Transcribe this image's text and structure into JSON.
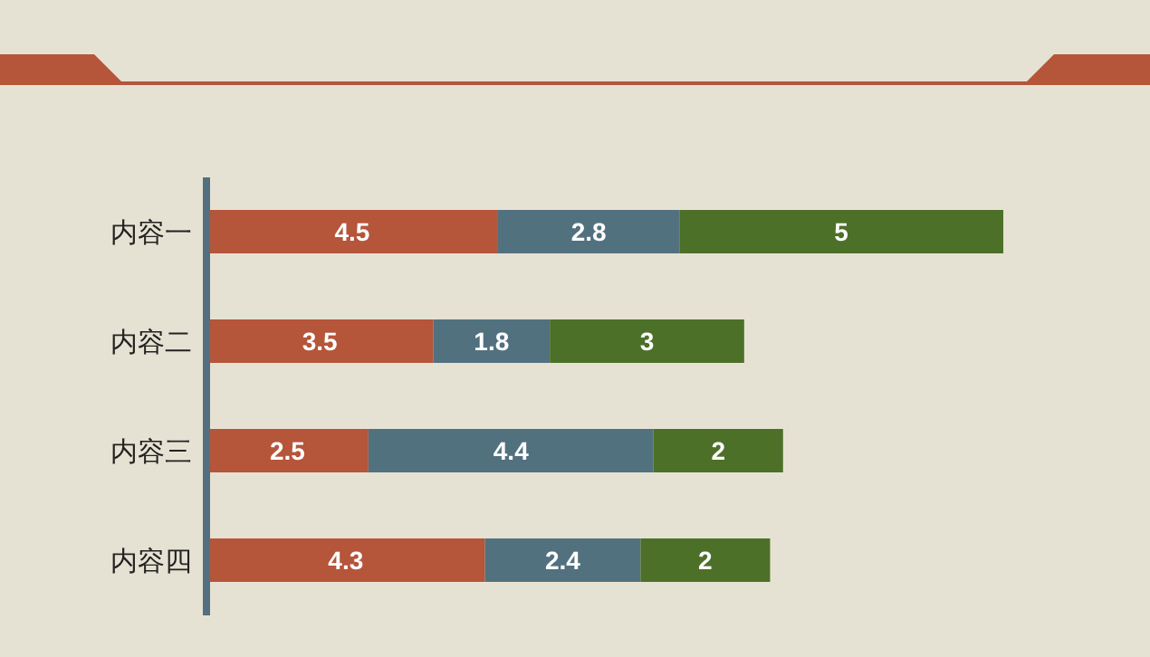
{
  "chart_data": {
    "type": "bar",
    "orientation": "horizontal",
    "stacked": true,
    "data_labels": true,
    "tick_labels": "y",
    "categories": [
      "内容一",
      "内容二",
      "内容三",
      "内容四"
    ],
    "series": [
      {
        "color": "#b5553a",
        "values": [
          4.5,
          3.5,
          2.5,
          4.3
        ]
      },
      {
        "color": "#52717f",
        "values": [
          2.8,
          1.8,
          4.4,
          2.4
        ]
      },
      {
        "color": "#4c7028",
        "values": [
          5,
          3,
          2,
          2
        ]
      }
    ]
  }
}
